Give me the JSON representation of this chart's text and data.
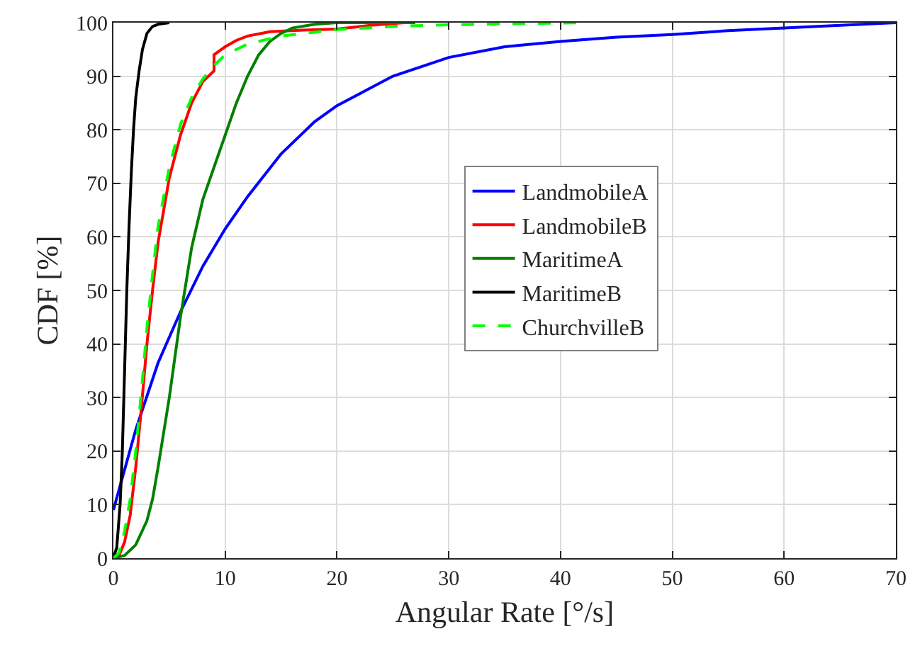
{
  "chart_data": {
    "type": "line",
    "xlabel": "Angular Rate [°/s]",
    "ylabel": "CDF [%]",
    "xlim": [
      0,
      70
    ],
    "xticks": [
      0,
      10,
      20,
      30,
      40,
      50,
      60,
      70
    ],
    "ylim": [
      0,
      100
    ],
    "yticks": [
      0,
      10,
      20,
      30,
      40,
      50,
      60,
      70,
      80,
      90,
      100
    ],
    "grid": true,
    "legend": "center right",
    "marker": "none",
    "series": [
      {
        "name": "LandmobileA",
        "color": "#0000ff",
        "line_style": "solid",
        "x": [
          0,
          2,
          4,
          6,
          8,
          10,
          12,
          15,
          18,
          20,
          25,
          30,
          35,
          40,
          45,
          50,
          55,
          60,
          70
        ],
        "values": [
          9,
          24,
          36.5,
          46,
          54.5,
          61.5,
          67.5,
          75.5,
          81.5,
          84.5,
          90,
          93.5,
          95.5,
          96.5,
          97.3,
          97.8,
          98.5,
          99,
          100
        ]
      },
      {
        "name": "LandmobileB",
        "color": "#ff0000",
        "line_style": "solid",
        "x": [
          0,
          0.5,
          1,
          1.5,
          2,
          2.5,
          3,
          3.5,
          4,
          5,
          6,
          7,
          8,
          9,
          9,
          10,
          11,
          12,
          14,
          17,
          20,
          23,
          26
        ],
        "values": [
          0,
          0.5,
          3,
          8,
          17,
          28,
          40,
          50,
          59,
          71,
          79,
          85,
          89,
          91,
          94,
          95.5,
          96.7,
          97.5,
          98.3,
          98.6,
          98.8,
          99.5,
          100
        ]
      },
      {
        "name": "MaritimeA",
        "color": "#008000",
        "line_style": "solid",
        "x": [
          0,
          1,
          2,
          3,
          3.5,
          4,
          5,
          6,
          7,
          8,
          9,
          10,
          11,
          12,
          13,
          14,
          15,
          16,
          18,
          20,
          27
        ],
        "values": [
          0,
          0.5,
          2.5,
          7,
          11,
          17,
          30,
          45,
          58,
          67,
          73,
          79,
          85,
          90,
          94,
          96.5,
          98,
          99,
          99.7,
          100,
          100
        ]
      },
      {
        "name": "MaritimeB",
        "color": "#000000",
        "line_style": "solid",
        "x": [
          0,
          0.3,
          0.6,
          0.8,
          1,
          1.2,
          1.4,
          1.6,
          1.8,
          2,
          2.3,
          2.6,
          3,
          3.5,
          4,
          5
        ],
        "values": [
          0,
          2,
          10,
          20,
          35,
          50,
          62,
          72,
          80,
          86,
          91,
          95,
          98,
          99.3,
          99.7,
          100
        ]
      },
      {
        "name": "ChurchvilleB",
        "color": "#00ff00",
        "line_style": "dashed",
        "x": [
          0,
          0.5,
          1,
          1.5,
          2,
          2.5,
          3,
          3.5,
          4,
          5,
          6,
          7,
          8,
          9,
          10,
          12,
          15,
          20,
          25,
          30,
          42
        ],
        "values": [
          0,
          1,
          5,
          11,
          20,
          31,
          43,
          53,
          62,
          73,
          81,
          86,
          89.5,
          92,
          94,
          96,
          97.5,
          98.7,
          99.3,
          99.6,
          100
        ]
      }
    ]
  }
}
